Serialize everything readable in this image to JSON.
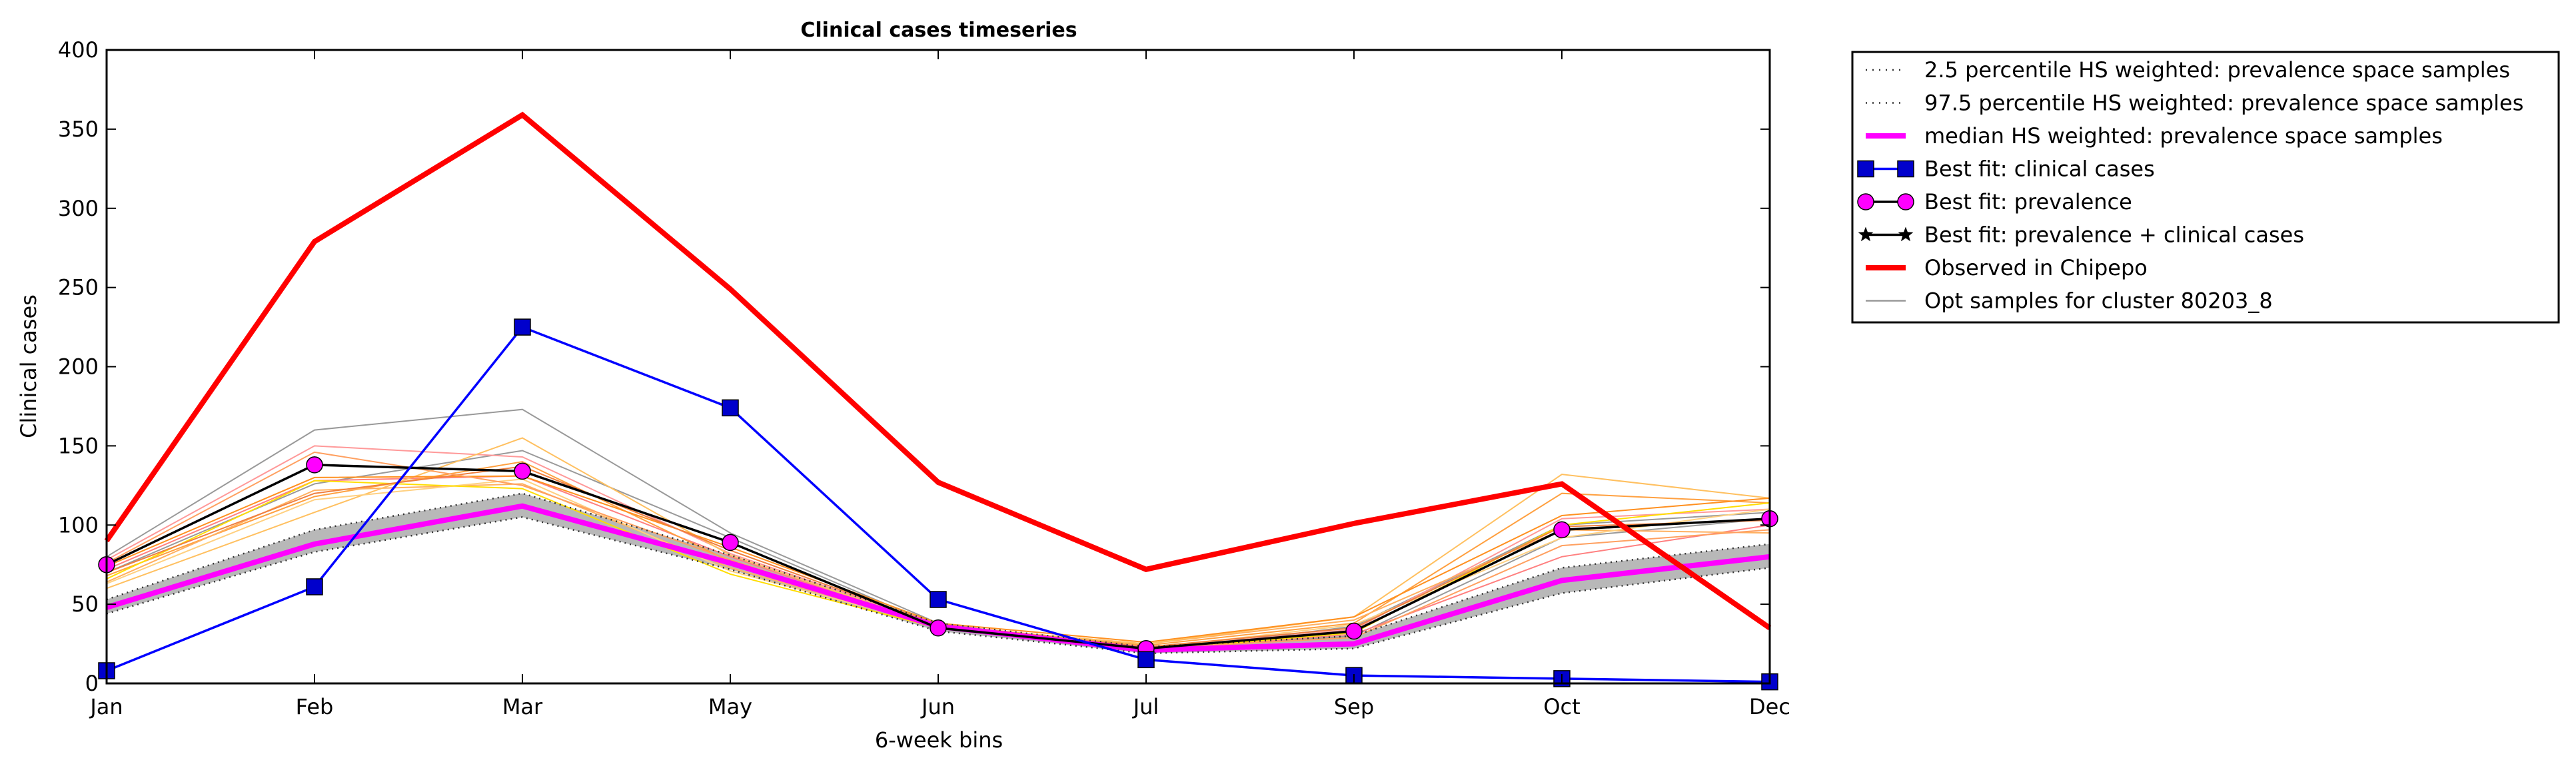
{
  "chart_data": {
    "type": "line",
    "title": "Clinical cases timeseries",
    "xlabel": "6-week bins",
    "ylabel": "Clinical cases",
    "categories": [
      "Jan",
      "Feb",
      "Mar",
      "May",
      "Jun",
      "Jul",
      "Sep",
      "Oct",
      "Dec"
    ],
    "yticks": [
      0,
      50,
      100,
      150,
      200,
      250,
      300,
      350,
      400
    ],
    "ylim": [
      0,
      400
    ],
    "grid": false,
    "legend_position": "outside-top-right",
    "band": {
      "lower": [
        44,
        83,
        105,
        72,
        33,
        19,
        22,
        57,
        73
      ],
      "upper": [
        53,
        97,
        120,
        81,
        38,
        23,
        30,
        73,
        88
      ]
    },
    "series": [
      {
        "name": "2.5 percentile HS weighted: prevalence space samples",
        "style": "dotted",
        "color": "#555555",
        "values": [
          44,
          83,
          105,
          72,
          33,
          19,
          22,
          57,
          73
        ]
      },
      {
        "name": "97.5 percentile HS weighted: prevalence space samples",
        "style": "dotted",
        "color": "#555555",
        "values": [
          53,
          97,
          120,
          81,
          38,
          23,
          30,
          73,
          88
        ]
      },
      {
        "name": "median HS weighted: prevalence space samples",
        "style": "thick",
        "color": "#ff00ff",
        "values": [
          48,
          88,
          112,
          76,
          36,
          21,
          25,
          65,
          80
        ]
      },
      {
        "name": "Best fit: clinical cases",
        "style": "square-marker",
        "color": "#0000ff",
        "values": [
          8,
          61,
          225,
          174,
          53,
          15,
          5,
          3,
          1
        ]
      },
      {
        "name": "Best fit: prevalence",
        "style": "circle-marker",
        "color": "#ff00ff",
        "values": [
          75,
          138,
          134,
          89,
          35,
          22,
          33,
          97,
          104
        ]
      },
      {
        "name": "Best fit: prevalence + clinical cases",
        "style": "star-marker",
        "color": "#000000",
        "values": [
          75,
          138,
          134,
          89,
          35,
          22,
          33,
          97,
          104
        ]
      },
      {
        "name": "Observed in Chipepo",
        "style": "thick",
        "color": "#ff0000",
        "values": [
          90,
          279,
          359,
          249,
          127,
          72,
          101,
          126,
          35
        ]
      },
      {
        "name": "Opt samples for cluster 80203_8",
        "style": "thin",
        "color": "#999999",
        "values": [
          80,
          160,
          173,
          95,
          38,
          20,
          36,
          100,
          108
        ]
      }
    ],
    "sample_lines": [
      {
        "color": "#999999",
        "values": [
          70,
          126,
          147,
          92,
          36,
          21,
          30,
          92,
          104
        ]
      },
      {
        "color": "#ff9999",
        "values": [
          78,
          150,
          143,
          82,
          37,
          22,
          34,
          104,
          110
        ]
      },
      {
        "color": "#ff8080",
        "values": [
          72,
          128,
          131,
          80,
          35,
          21,
          31,
          80,
          100
        ]
      },
      {
        "color": "#ffa040",
        "values": [
          68,
          118,
          140,
          77,
          37,
          24,
          38,
          120,
          114
        ]
      },
      {
        "color": "#ffb060",
        "values": [
          64,
          122,
          126,
          73,
          36,
          25,
          40,
          97,
          95
        ]
      },
      {
        "color": "#ffc060",
        "values": [
          60,
          108,
          155,
          81,
          36,
          25,
          42,
          132,
          117
        ]
      },
      {
        "color": "#ffd080",
        "values": [
          63,
          116,
          129,
          71,
          36,
          22,
          37,
          92,
          110
        ]
      },
      {
        "color": "#ffdd00",
        "values": [
          66,
          128,
          123,
          69,
          35,
          21,
          32,
          100,
          114
        ]
      },
      {
        "color": "#ff9020",
        "values": [
          74,
          130,
          131,
          86,
          38,
          26,
          42,
          106,
          117
        ]
      },
      {
        "color": "#f08040",
        "values": [
          70,
          120,
          137,
          84,
          37,
          23,
          35,
          99,
          103
        ]
      },
      {
        "color": "#ffa060",
        "values": [
          76,
          146,
          125,
          78,
          35,
          22,
          29,
          87,
          97
        ]
      }
    ]
  }
}
